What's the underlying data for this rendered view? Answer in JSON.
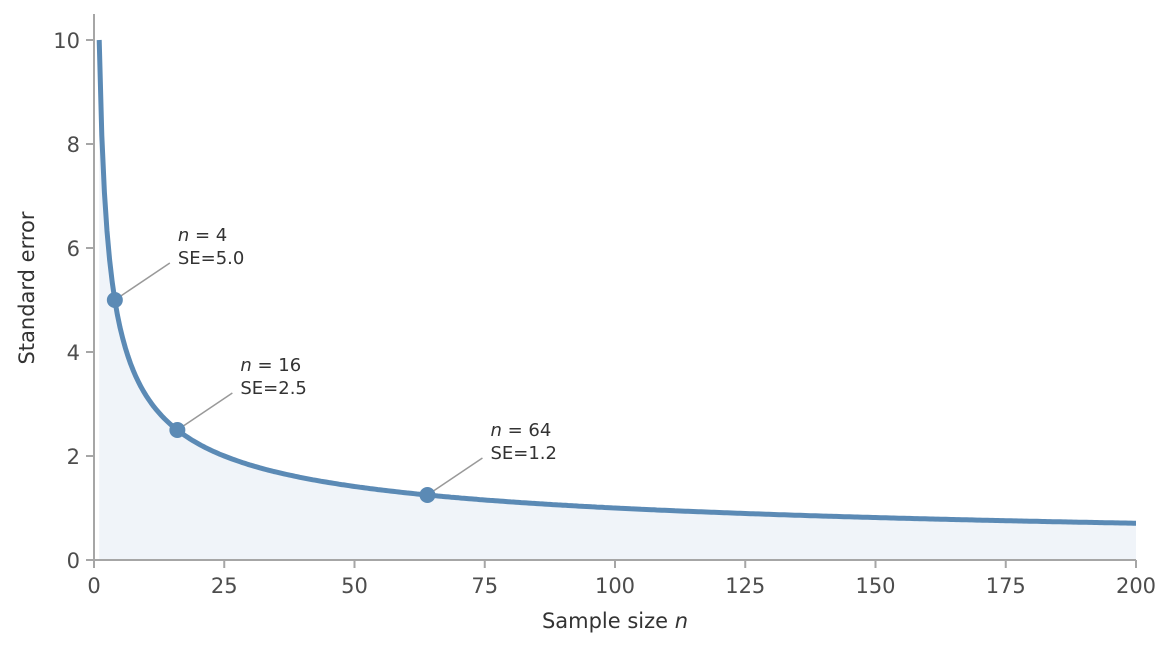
{
  "chart_data": {
    "type": "line",
    "title": "",
    "xlabel": "Sample size n",
    "xlabel_text": "Sample size ",
    "xlabel_var": "n",
    "ylabel": "Standard error",
    "xlim": [
      0,
      200
    ],
    "ylim": [
      0,
      10.5
    ],
    "grid": false,
    "legend": null,
    "function": "SE = 10 / sqrt(n)",
    "x_range": [
      1,
      200
    ],
    "x_ticks": [
      "0",
      "25",
      "50",
      "75",
      "100",
      "125",
      "150",
      "175",
      "200"
    ],
    "y_ticks": [
      "0",
      "2",
      "4",
      "6",
      "8",
      "10"
    ],
    "series": [
      {
        "name": "Standard error",
        "color": "#5b8ab5",
        "fill": "#f0f4f9",
        "x": [
          1,
          2,
          3,
          4,
          5,
          8,
          10,
          16,
          20,
          25,
          36,
          50,
          64,
          75,
          100,
          125,
          150,
          175,
          200
        ],
        "values": [
          10.0,
          7.07,
          5.77,
          5.0,
          4.47,
          3.54,
          3.16,
          2.5,
          2.24,
          2.0,
          1.67,
          1.41,
          1.25,
          1.15,
          1.0,
          0.89,
          0.82,
          0.76,
          0.71
        ]
      }
    ],
    "annotations": [
      {
        "n": 4,
        "se": 5.0,
        "line1_var": "n",
        "line1_rest": " = 4",
        "line2": "SE=5.0"
      },
      {
        "n": 16,
        "se": 2.5,
        "line1_var": "n",
        "line1_rest": " = 16",
        "line2": "SE=2.5"
      },
      {
        "n": 64,
        "se": 1.25,
        "line1_var": "n",
        "line1_rest": " = 64",
        "line2": "SE=1.2"
      }
    ]
  }
}
